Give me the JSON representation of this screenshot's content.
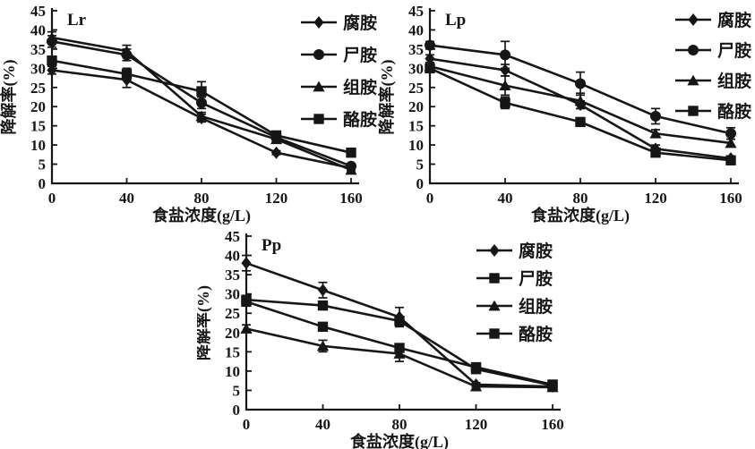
{
  "figure": {
    "background": "#ffffff",
    "ink_color": "#161616",
    "description": "Three line chart panels of amine degradation rate vs salt concentration"
  },
  "chart_data": [
    {
      "type": "line",
      "panel_label": "Lr",
      "xlabel": "食盐浓度(g/L)",
      "ylabel": "降解率(%)",
      "ylim": [
        0,
        45
      ],
      "ytick_step": 5,
      "x": [
        0,
        40,
        80,
        120,
        160
      ],
      "legend_position": "right-overlay",
      "grid": false,
      "series": [
        {
          "name": "腐胺",
          "marker": "diamond",
          "values": [
            29.5,
            27,
            17,
            8,
            4
          ],
          "err": [
            1,
            2,
            1,
            0.5,
            0.5
          ]
        },
        {
          "name": "尸胺",
          "marker": "circle",
          "values": [
            37,
            33.5,
            21,
            12,
            4.5
          ],
          "err": [
            1.5,
            1.5,
            1.5,
            0.5,
            0.5
          ]
        },
        {
          "name": "组胺",
          "marker": "triangle",
          "values": [
            38,
            34.5,
            17.5,
            11.5,
            3.5
          ],
          "err": [
            1.5,
            1.5,
            1,
            0.5,
            0.5
          ]
        },
        {
          "name": "酪胺",
          "marker": "square",
          "values": [
            32,
            28.5,
            24,
            12.5,
            8
          ],
          "err": [
            1,
            1.5,
            2.5,
            1,
            0.5
          ]
        }
      ]
    },
    {
      "type": "line",
      "panel_label": "Lp",
      "xlabel": "食盐浓度(g/L)",
      "ylabel": "降解率(%)",
      "ylim": [
        0,
        45
      ],
      "ytick_step": 5,
      "x": [
        0,
        40,
        80,
        120,
        160
      ],
      "legend_position": "right-overlay",
      "grid": false,
      "series": [
        {
          "name": "腐胺",
          "marker": "diamond",
          "values": [
            32.5,
            29.5,
            20.5,
            9,
            6.5
          ],
          "err": [
            1,
            1.5,
            1,
            1,
            0.5
          ]
        },
        {
          "name": "尸胺",
          "marker": "circle",
          "values": [
            36,
            33.5,
            26,
            17.5,
            13
          ],
          "err": [
            1,
            3.5,
            3,
            2,
            1.5
          ]
        },
        {
          "name": "组胺",
          "marker": "triangle",
          "values": [
            30.5,
            25.5,
            21.5,
            13,
            10.5
          ],
          "err": [
            1,
            2.5,
            2,
            1,
            1
          ]
        },
        {
          "name": "酪胺",
          "marker": "square",
          "values": [
            30,
            21,
            16,
            8,
            6
          ],
          "err": [
            1,
            1.5,
            1,
            0.5,
            0.5
          ]
        }
      ]
    },
    {
      "type": "line",
      "panel_label": "Pp",
      "xlabel": "食盐浓度(g/L)",
      "ylabel": "降解率(%)",
      "ylim": [
        0,
        45
      ],
      "ytick_step": 5,
      "x": [
        0,
        40,
        80,
        120,
        160
      ],
      "legend_position": "right-overlay",
      "grid": false,
      "series": [
        {
          "name": "腐胺",
          "marker": "diamond",
          "values": [
            38,
            31,
            24,
            6.5,
            6
          ],
          "err": [
            2,
            2,
            2.5,
            0.5,
            0.5
          ]
        },
        {
          "name": "尸胺",
          "marker": "square",
          "values": [
            28.5,
            27,
            23,
            10.5,
            6.3
          ],
          "err": [
            1,
            1,
            1,
            0.5,
            0.5
          ]
        },
        {
          "name": "组胺",
          "marker": "triangle",
          "values": [
            21,
            16.5,
            14.5,
            6,
            5.8
          ],
          "err": [
            1,
            1.5,
            2,
            0.5,
            0.5
          ]
        },
        {
          "name": "酪胺",
          "marker": "square",
          "values": [
            28,
            21.5,
            16,
            11,
            6.5
          ],
          "err": [
            1,
            1,
            1,
            0.5,
            0.5
          ]
        }
      ]
    }
  ]
}
